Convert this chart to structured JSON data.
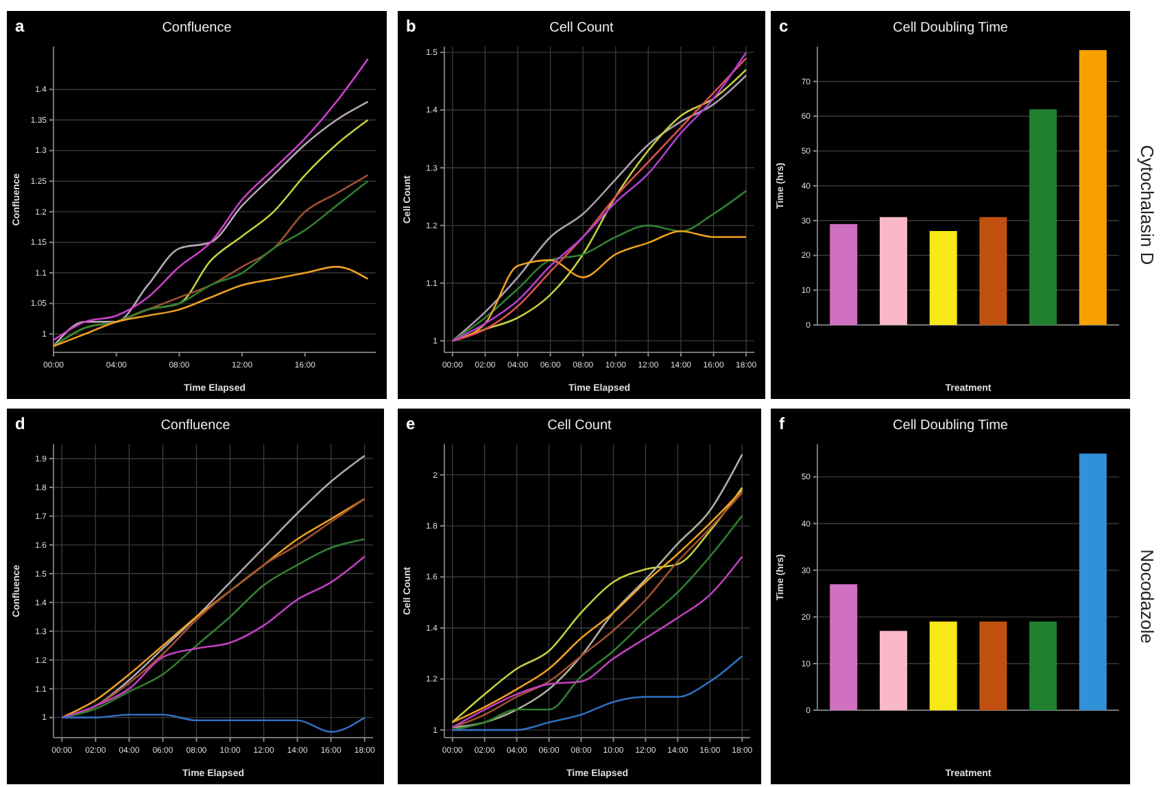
{
  "chart_data": [
    {
      "type": "line",
      "title": "Confluence",
      "xlabel": "Time Elapsed",
      "ylabel": "Confluence",
      "annotations": [
        "a"
      ],
      "grid": "y",
      "xlim": [
        0,
        20.5
      ],
      "ylim": [
        0.97,
        1.47
      ],
      "xticks": [
        {
          "value": 0,
          "label": "00:00"
        },
        {
          "value": 4,
          "label": "04:00"
        },
        {
          "value": 8,
          "label": "08:00"
        },
        {
          "value": 12,
          "label": "12:00"
        },
        {
          "value": 16,
          "label": "16:00"
        }
      ],
      "yticks": [
        1,
        1.05,
        1.1,
        1.15,
        1.2,
        1.25,
        1.3,
        1.35,
        1.4
      ],
      "x": [
        0,
        2,
        4,
        6,
        8,
        10,
        12,
        14,
        16,
        18,
        20
      ],
      "series": [
        {
          "color": "#b8a8b8",
          "values": [
            0.98,
            1.02,
            1.02,
            1.08,
            1.14,
            1.15,
            1.21,
            1.26,
            1.31,
            1.35,
            1.38
          ]
        },
        {
          "color": "#c8d040",
          "values": [
            0.98,
            1.01,
            1.02,
            1.04,
            1.05,
            1.12,
            1.16,
            1.2,
            1.26,
            1.31,
            1.35
          ]
        },
        {
          "color": "#a05030",
          "values": [
            0.98,
            1.01,
            1.02,
            1.04,
            1.06,
            1.08,
            1.11,
            1.14,
            1.2,
            1.23,
            1.26
          ]
        },
        {
          "color": "#308030",
          "values": [
            0.98,
            1.01,
            1.02,
            1.04,
            1.05,
            1.08,
            1.1,
            1.14,
            1.17,
            1.21,
            1.25
          ]
        },
        {
          "color": "#d040d0",
          "values": [
            0.99,
            1.02,
            1.03,
            1.06,
            1.11,
            1.15,
            1.22,
            1.27,
            1.32,
            1.38,
            1.45
          ]
        },
        {
          "color": "#f0a020",
          "values": [
            0.98,
            1.0,
            1.02,
            1.03,
            1.04,
            1.06,
            1.08,
            1.09,
            1.1,
            1.11,
            1.09
          ]
        }
      ]
    },
    {
      "type": "line",
      "title": "Cell Count",
      "xlabel": "Time Elapsed",
      "ylabel": "Cell Count",
      "annotations": [
        "b"
      ],
      "grid": true,
      "xlim": [
        -0.5,
        18.5
      ],
      "ylim": [
        0.98,
        1.51
      ],
      "xticks": [
        {
          "value": 0,
          "label": "00:00"
        },
        {
          "value": 2,
          "label": "02:00"
        },
        {
          "value": 4,
          "label": "04:00"
        },
        {
          "value": 6,
          "label": "06:00"
        },
        {
          "value": 8,
          "label": "08:00"
        },
        {
          "value": 10,
          "label": "10:00"
        },
        {
          "value": 12,
          "label": "12:00"
        },
        {
          "value": 14,
          "label": "14:00"
        },
        {
          "value": 16,
          "label": "16:00"
        },
        {
          "value": 18,
          "label": "18:00"
        }
      ],
      "yticks": [
        1,
        1.1,
        1.2,
        1.3,
        1.4,
        1.5
      ],
      "x": [
        0,
        2,
        4,
        6,
        8,
        10,
        12,
        14,
        16,
        18
      ],
      "series": [
        {
          "color": "#b0a0b0",
          "values": [
            1,
            1.05,
            1.11,
            1.18,
            1.22,
            1.28,
            1.34,
            1.38,
            1.41,
            1.46
          ]
        },
        {
          "color": "#c8d040",
          "values": [
            1,
            1.02,
            1.04,
            1.08,
            1.15,
            1.25,
            1.33,
            1.39,
            1.42,
            1.47
          ]
        },
        {
          "color": "#308030",
          "values": [
            1,
            1.04,
            1.09,
            1.14,
            1.15,
            1.18,
            1.2,
            1.19,
            1.22,
            1.26
          ]
        },
        {
          "color": "#f0a020",
          "values": [
            1,
            1.03,
            1.13,
            1.14,
            1.11,
            1.15,
            1.17,
            1.19,
            1.18,
            1.18
          ]
        },
        {
          "color": "#e05050",
          "values": [
            1,
            1.02,
            1.06,
            1.12,
            1.18,
            1.25,
            1.31,
            1.37,
            1.43,
            1.49
          ]
        },
        {
          "color": "#b040d0",
          "values": [
            1,
            1.03,
            1.07,
            1.13,
            1.18,
            1.24,
            1.29,
            1.36,
            1.42,
            1.5
          ]
        }
      ]
    },
    {
      "type": "bar",
      "title": "Cell Doubling Time",
      "xlabel": "Treatment",
      "ylabel": "Time (hrs)",
      "annotations": [
        "c",
        "Cytochalasin D"
      ],
      "grid": "y",
      "categories": [
        null,
        null,
        null,
        null,
        null,
        null
      ],
      "values": [
        29,
        31,
        27,
        31,
        62,
        79
      ],
      "colors": [
        "#d070c0",
        "#f8b8c8",
        "#f8e818",
        "#c05010",
        "#208030",
        "#f8a000"
      ],
      "ylim": [
        0,
        80
      ],
      "yticks": [
        0,
        10,
        20,
        30,
        40,
        50,
        60,
        70
      ]
    },
    {
      "type": "line",
      "title": "Confluence",
      "xlabel": "Time Elapsed",
      "ylabel": "Confluence",
      "annotations": [
        "d"
      ],
      "grid": true,
      "xlim": [
        -0.5,
        18.5
      ],
      "ylim": [
        0.93,
        1.95
      ],
      "xticks": [
        {
          "value": 0,
          "label": "00:00"
        },
        {
          "value": 2,
          "label": "02:00"
        },
        {
          "value": 4,
          "label": "04:00"
        },
        {
          "value": 6,
          "label": "06:00"
        },
        {
          "value": 8,
          "label": "08:00"
        },
        {
          "value": 10,
          "label": "10:00"
        },
        {
          "value": 12,
          "label": "12:00"
        },
        {
          "value": 14,
          "label": "14:00"
        },
        {
          "value": 16,
          "label": "16:00"
        },
        {
          "value": 18,
          "label": "18:00"
        }
      ],
      "yticks": [
        1,
        1.1,
        1.2,
        1.3,
        1.4,
        1.5,
        1.6,
        1.7,
        1.8,
        1.9
      ],
      "x": [
        0,
        2,
        4,
        6,
        8,
        10,
        12,
        14,
        16,
        18
      ],
      "series": [
        {
          "color": "#b0a8b0",
          "values": [
            1,
            1.04,
            1.13,
            1.24,
            1.35,
            1.47,
            1.59,
            1.71,
            1.82,
            1.91
          ]
        },
        {
          "color": "#f0a020",
          "values": [
            1,
            1.06,
            1.15,
            1.25,
            1.35,
            1.44,
            1.53,
            1.62,
            1.69,
            1.76
          ]
        },
        {
          "color": "#a05030",
          "values": [
            1,
            1.04,
            1.12,
            1.22,
            1.34,
            1.44,
            1.53,
            1.6,
            1.68,
            1.76
          ]
        },
        {
          "color": "#308030",
          "values": [
            1,
            1.03,
            1.09,
            1.15,
            1.25,
            1.35,
            1.46,
            1.53,
            1.59,
            1.62
          ]
        },
        {
          "color": "#c040c0",
          "values": [
            1,
            1.04,
            1.1,
            1.21,
            1.24,
            1.26,
            1.32,
            1.41,
            1.47,
            1.56
          ]
        },
        {
          "color": "#3070c0",
          "values": [
            1,
            1,
            1.01,
            1.01,
            0.99,
            0.99,
            0.99,
            0.99,
            0.95,
            1
          ]
        }
      ]
    },
    {
      "type": "line",
      "title": "Cell Count",
      "xlabel": "Time Elapsed",
      "ylabel": "Cell Count",
      "annotations": [
        "e"
      ],
      "grid": true,
      "xlim": [
        -0.5,
        18.5
      ],
      "ylim": [
        0.97,
        2.12
      ],
      "xticks": [
        {
          "value": 0,
          "label": "00:00"
        },
        {
          "value": 2,
          "label": "02:00"
        },
        {
          "value": 4,
          "label": "04:00"
        },
        {
          "value": 6,
          "label": "06:00"
        },
        {
          "value": 8,
          "label": "08:00"
        },
        {
          "value": 10,
          "label": "10:00"
        },
        {
          "value": 12,
          "label": "12:00"
        },
        {
          "value": 14,
          "label": "14:00"
        },
        {
          "value": 16,
          "label": "16:00"
        },
        {
          "value": 18,
          "label": "18:00"
        }
      ],
      "yticks": [
        1,
        1.2,
        1.4,
        1.6,
        1.8,
        2
      ],
      "x": [
        0,
        2,
        4,
        6,
        8,
        10,
        12,
        14,
        16,
        18
      ],
      "series": [
        {
          "color": "#c8d040",
          "values": [
            1.03,
            1.14,
            1.24,
            1.31,
            1.46,
            1.58,
            1.63,
            1.65,
            1.78,
            1.95
          ]
        },
        {
          "color": "#b0b0a0",
          "values": [
            1.01,
            1.03,
            1.08,
            1.16,
            1.29,
            1.46,
            1.59,
            1.73,
            1.86,
            2.08
          ]
        },
        {
          "color": "#f0a020",
          "values": [
            1.03,
            1.09,
            1.16,
            1.24,
            1.36,
            1.46,
            1.58,
            1.69,
            1.81,
            1.94
          ]
        },
        {
          "color": "#a05030",
          "values": [
            1.01,
            1.06,
            1.13,
            1.19,
            1.29,
            1.39,
            1.51,
            1.66,
            1.79,
            1.93
          ]
        },
        {
          "color": "#308030",
          "values": [
            1,
            1.03,
            1.08,
            1.08,
            1.21,
            1.31,
            1.43,
            1.54,
            1.68,
            1.84
          ]
        },
        {
          "color": "#c040c0",
          "values": [
            1.01,
            1.08,
            1.14,
            1.18,
            1.19,
            1.28,
            1.36,
            1.44,
            1.53,
            1.68
          ]
        },
        {
          "color": "#3070c0",
          "values": [
            1,
            1,
            1,
            1.03,
            1.06,
            1.11,
            1.13,
            1.13,
            1.19,
            1.29
          ]
        }
      ]
    },
    {
      "type": "bar",
      "title": "Cell Doubling Time",
      "xlabel": "Treatment",
      "ylabel": "Time (hrs)",
      "annotations": [
        "f",
        "Nocodazole"
      ],
      "grid": "y",
      "categories": [
        null,
        null,
        null,
        null,
        null,
        null
      ],
      "values": [
        27,
        17,
        19,
        19,
        19,
        55
      ],
      "colors": [
        "#d070c0",
        "#f8b8c8",
        "#f8e818",
        "#c05010",
        "#208030",
        "#3090d8"
      ],
      "ylim": [
        0,
        57
      ],
      "yticks": [
        0,
        10,
        20,
        30,
        40,
        50
      ]
    }
  ]
}
